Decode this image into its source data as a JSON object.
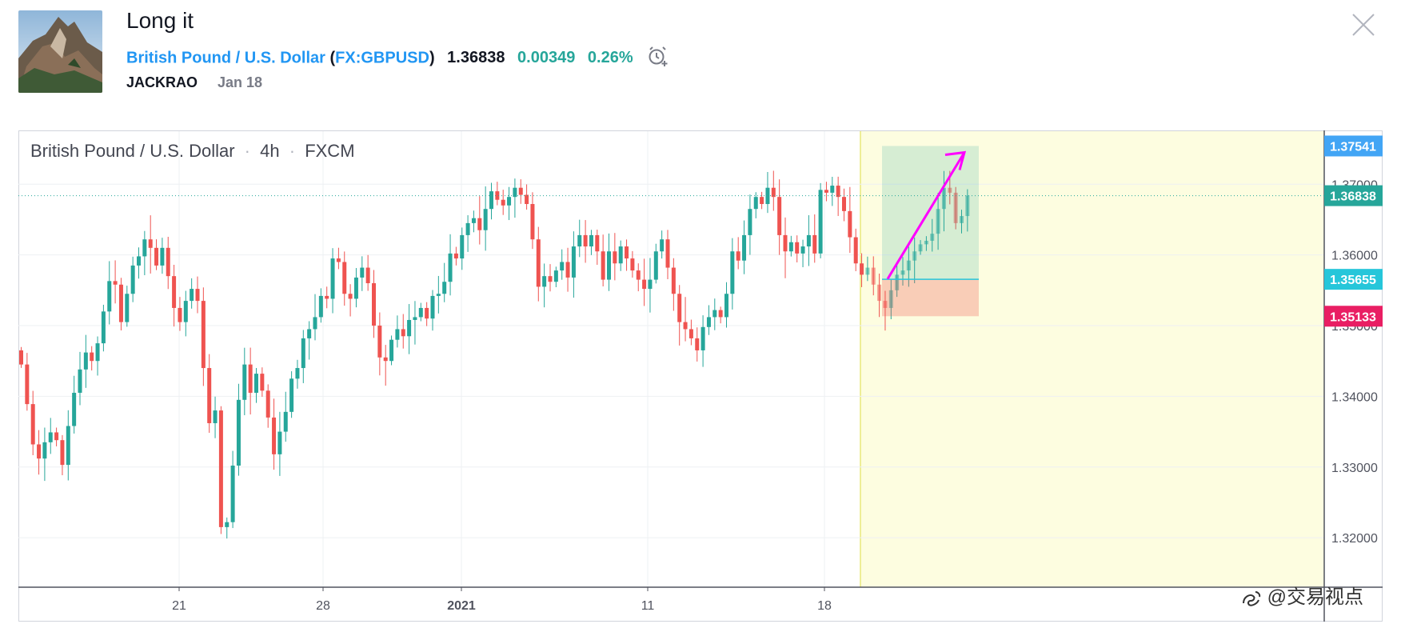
{
  "header": {
    "title": "Long it",
    "symbol_name": "British Pound / U.S. Dollar",
    "open_paren": "(",
    "ticker": "FX:GBPUSD",
    "close_paren": ")",
    "price": "1.36838",
    "change": "0.00349",
    "change_percent": "0.26%",
    "author": "JACKRAO",
    "date": "Jan 18"
  },
  "chart_legend": {
    "symbol": "British Pound / U.S. Dollar",
    "interval": "4h",
    "exchange": "FXCM",
    "separator": "·"
  },
  "watermark": "@交易视点",
  "colors": {
    "up": "#26a69a",
    "down": "#ef5350",
    "accent": "#2196f3",
    "arrow": "#ff00ff",
    "future_zone": "#fdfde0"
  },
  "chart_data": {
    "type": "candlestick",
    "interval": "4h",
    "x_tick_labels": [
      "21",
      "28",
      "2021",
      "11",
      "18"
    ],
    "y_tick_labels": [
      "1.37000",
      "1.36000",
      "1.35000",
      "1.34000",
      "1.33000",
      "1.32000"
    ],
    "ylim": [
      1.313,
      1.3775
    ],
    "current_price": 1.36838,
    "price_badges": [
      {
        "label": "1.37541",
        "value": 1.37541,
        "color": "#42a5f5",
        "role": "target"
      },
      {
        "label": "1.36838",
        "value": 1.36838,
        "color": "#26a69a",
        "role": "last"
      },
      {
        "label": "1.35655",
        "value": 1.35655,
        "color": "#26c6da",
        "role": "entry"
      },
      {
        "label": "1.35133",
        "value": 1.35133,
        "color": "#e91e63",
        "role": "stop"
      }
    ],
    "long_position": {
      "entry": 1.35655,
      "target": 1.37541,
      "stop": 1.35133
    },
    "closes": [
      1.3445,
      1.3389,
      1.3332,
      1.3312,
      1.3335,
      1.3349,
      1.3338,
      1.3303,
      1.3358,
      1.3405,
      1.3438,
      1.3462,
      1.345,
      1.3475,
      1.352,
      1.3563,
      1.3558,
      1.3505,
      1.3545,
      1.3585,
      1.3598,
      1.3622,
      1.361,
      1.3585,
      1.361,
      1.357,
      1.3525,
      1.3505,
      1.3535,
      1.3552,
      1.3535,
      1.344,
      1.3362,
      1.338,
      1.3215,
      1.3222,
      1.3302,
      1.3395,
      1.3445,
      1.3405,
      1.3432,
      1.3408,
      1.337,
      1.3318,
      1.335,
      1.3378,
      1.3425,
      1.344,
      1.3482,
      1.3495,
      1.3512,
      1.3542,
      1.3538,
      1.3595,
      1.359,
      1.3545,
      1.3538,
      1.3568,
      1.3582,
      1.356,
      1.35,
      1.3455,
      1.345,
      1.348,
      1.3495,
      1.3485,
      1.3508,
      1.3512,
      1.3525,
      1.351,
      1.3542,
      1.3545,
      1.3562,
      1.3602,
      1.3595,
      1.3628,
      1.3645,
      1.3652,
      1.3635,
      1.3665,
      1.369,
      1.3678,
      1.367,
      1.3682,
      1.3695,
      1.3685,
      1.3672,
      1.3622,
      1.3555,
      1.357,
      1.3562,
      1.3578,
      1.359,
      1.3568,
      1.3612,
      1.3628,
      1.3612,
      1.3628,
      1.3605,
      1.3565,
      1.3605,
      1.3588,
      1.3612,
      1.3595,
      1.3578,
      1.3565,
      1.3552,
      1.3565,
      1.3605,
      1.3622,
      1.3582,
      1.3545,
      1.3505,
      1.3495,
      1.3482,
      1.3465,
      1.3498,
      1.3512,
      1.3522,
      1.3512,
      1.3545,
      1.3605,
      1.3592,
      1.3628,
      1.3665,
      1.3682,
      1.3672,
      1.3695,
      1.3682,
      1.3628,
      1.3605,
      1.3618,
      1.3602,
      1.3612,
      1.3628,
      1.3602,
      1.3692,
      1.3688,
      1.3698,
      1.3682,
      1.3662,
      1.3625,
      1.3588,
      1.3572,
      1.3582,
      1.3558,
      1.3535,
      1.3525,
      1.355,
      1.3572,
      1.3578,
      1.3592,
      1.3605,
      1.3615,
      1.362,
      1.363,
      1.3665,
      1.3695,
      1.3688,
      1.3645,
      1.3655,
      1.3684
    ]
  }
}
